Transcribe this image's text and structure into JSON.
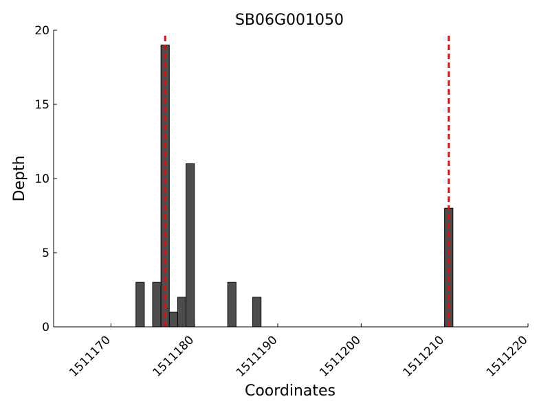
{
  "chart_data": {
    "type": "bar",
    "title": "SB06G001050",
    "x_label": "Coordinates",
    "y_label": "Depth",
    "x": [
      1511173,
      1511175,
      1511176,
      1511177,
      1511178,
      1511179,
      1511184,
      1511187,
      1511210
    ],
    "values": [
      3,
      3,
      19,
      1,
      2,
      11,
      3,
      2,
      8
    ],
    "bar_width": 1,
    "bar_align": "edge",
    "color": "#4d4d4d",
    "edge_color": "#000000",
    "vlines": [
      1511176.5,
      1511210.5
    ],
    "vline_color": "#ff0000",
    "xlim": [
      1511163.13,
      1511220
    ],
    "xticks": [
      1511170,
      1511180,
      1511190,
      1511200,
      1511210,
      1511220
    ],
    "ylim": [
      0,
      20
    ],
    "yticks": [
      0,
      5,
      10,
      15,
      20
    ]
  }
}
